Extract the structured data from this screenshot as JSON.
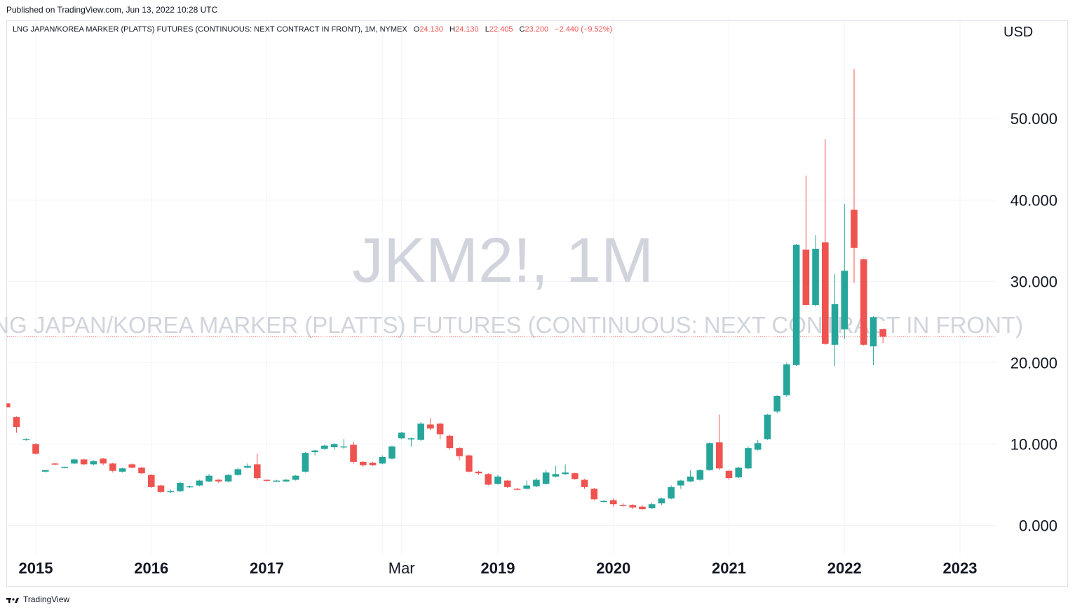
{
  "published": "Published on TradingView.com, Jun 13, 2022 10:28 UTC",
  "legend": {
    "title": "LNG JAPAN/KOREA MARKER (PLATTS) FUTURES (CONTINUOUS: NEXT CONTRACT IN FRONT), 1M, NYMEX",
    "o_label": "O",
    "o": "24.130",
    "h_label": "H",
    "h": "24.130",
    "l_label": "L",
    "l": "22.405",
    "c_label": "C",
    "c": "23.200",
    "change": "−2.440 (−9.52%)"
  },
  "watermark": {
    "symbol": "JKM2!, 1M",
    "description": "LNG JAPAN/KOREA MARKER (PLATTS) FUTURES (CONTINUOUS: NEXT CONTRACT IN FRONT)"
  },
  "currency": "USD",
  "footer": {
    "brand": "TradingView"
  },
  "colors": {
    "up": "#26a69a",
    "down": "#ef5350",
    "grid": "#f0f3fa",
    "watermark": "#d1d4dc",
    "price_line": "#ef5350"
  },
  "chart_data": {
    "type": "candlestick",
    "interval": "1M",
    "y_ticks": [
      "0.000",
      "10.000",
      "20.000",
      "30.000",
      "40.000",
      "50.000"
    ],
    "ylim": [
      -3.5,
      62
    ],
    "x_ticks": [
      {
        "label": "2015",
        "date": "2015-01"
      },
      {
        "label": "2016",
        "date": "2016-01"
      },
      {
        "label": "2017",
        "date": "2017-01"
      },
      {
        "label": "Mar",
        "date": "2018-03"
      },
      {
        "label": "2019",
        "date": "2019-01"
      },
      {
        "label": "2020",
        "date": "2020-01"
      },
      {
        "label": "2021",
        "date": "2021-01"
      },
      {
        "label": "2022",
        "date": "2022-01"
      },
      {
        "label": "2023",
        "date": "2023-01"
      }
    ],
    "grid_dates": [
      "2015-01",
      "2016-01",
      "2017-01",
      "2018-01",
      "2018-03",
      "2019-01",
      "2020-01",
      "2021-01",
      "2022-01",
      "2023-01"
    ],
    "last_price": 23.2,
    "candles": [
      {
        "d": "2014-10",
        "o": 15.0,
        "h": 15.0,
        "l": 14.5,
        "c": 14.5
      },
      {
        "d": "2014-11",
        "o": 13.3,
        "h": 13.4,
        "l": 11.4,
        "c": 12.1
      },
      {
        "d": "2014-12",
        "o": 10.5,
        "h": 10.7,
        "l": 10.4,
        "c": 10.6
      },
      {
        "d": "2015-01",
        "o": 10.0,
        "h": 10.1,
        "l": 8.7,
        "c": 8.8
      },
      {
        "d": "2015-02",
        "o": 6.6,
        "h": 6.8,
        "l": 6.5,
        "c": 6.8
      },
      {
        "d": "2015-03",
        "o": 7.6,
        "h": 7.7,
        "l": 7.4,
        "c": 7.5
      },
      {
        "d": "2015-04",
        "o": 7.1,
        "h": 7.2,
        "l": 7.0,
        "c": 7.2
      },
      {
        "d": "2015-05",
        "o": 7.6,
        "h": 8.2,
        "l": 7.5,
        "c": 8.1
      },
      {
        "d": "2015-06",
        "o": 8.1,
        "h": 8.2,
        "l": 7.4,
        "c": 7.5
      },
      {
        "d": "2015-07",
        "o": 7.5,
        "h": 8.0,
        "l": 7.4,
        "c": 7.9
      },
      {
        "d": "2015-08",
        "o": 8.2,
        "h": 8.3,
        "l": 7.4,
        "c": 7.6
      },
      {
        "d": "2015-09",
        "o": 7.6,
        "h": 7.7,
        "l": 6.5,
        "c": 6.7
      },
      {
        "d": "2015-10",
        "o": 6.6,
        "h": 7.1,
        "l": 6.5,
        "c": 7.0
      },
      {
        "d": "2015-11",
        "o": 7.5,
        "h": 7.6,
        "l": 7.0,
        "c": 7.1
      },
      {
        "d": "2015-12",
        "o": 7.1,
        "h": 7.2,
        "l": 6.3,
        "c": 6.4
      },
      {
        "d": "2016-01",
        "o": 6.2,
        "h": 6.3,
        "l": 4.6,
        "c": 4.7
      },
      {
        "d": "2016-02",
        "o": 4.9,
        "h": 5.0,
        "l": 4.0,
        "c": 4.1
      },
      {
        "d": "2016-03",
        "o": 4.1,
        "h": 4.4,
        "l": 4.0,
        "c": 4.2
      },
      {
        "d": "2016-04",
        "o": 4.2,
        "h": 5.4,
        "l": 4.1,
        "c": 5.2
      },
      {
        "d": "2016-05",
        "o": 4.7,
        "h": 4.9,
        "l": 4.6,
        "c": 4.8
      },
      {
        "d": "2016-06",
        "o": 4.9,
        "h": 5.6,
        "l": 4.8,
        "c": 5.5
      },
      {
        "d": "2016-07",
        "o": 5.4,
        "h": 6.3,
        "l": 5.3,
        "c": 6.1
      },
      {
        "d": "2016-08",
        "o": 5.6,
        "h": 5.7,
        "l": 5.2,
        "c": 5.4
      },
      {
        "d": "2016-09",
        "o": 5.4,
        "h": 6.3,
        "l": 5.3,
        "c": 6.2
      },
      {
        "d": "2016-10",
        "o": 6.2,
        "h": 7.1,
        "l": 6.1,
        "c": 6.9
      },
      {
        "d": "2016-11",
        "o": 7.1,
        "h": 7.6,
        "l": 7.0,
        "c": 7.3
      },
      {
        "d": "2016-12",
        "o": 7.5,
        "h": 8.8,
        "l": 5.6,
        "c": 5.8
      },
      {
        "d": "2017-01",
        "o": 5.6,
        "h": 5.6,
        "l": 5.4,
        "c": 5.5
      },
      {
        "d": "2017-02",
        "o": 5.5,
        "h": 5.6,
        "l": 5.4,
        "c": 5.5
      },
      {
        "d": "2017-03",
        "o": 5.4,
        "h": 5.7,
        "l": 5.3,
        "c": 5.6
      },
      {
        "d": "2017-04",
        "o": 5.6,
        "h": 6.2,
        "l": 5.5,
        "c": 6.1
      },
      {
        "d": "2017-05",
        "o": 6.6,
        "h": 9.0,
        "l": 6.5,
        "c": 8.9
      },
      {
        "d": "2017-06",
        "o": 9.0,
        "h": 9.3,
        "l": 8.6,
        "c": 9.2
      },
      {
        "d": "2017-07",
        "o": 9.4,
        "h": 9.9,
        "l": 9.3,
        "c": 9.8
      },
      {
        "d": "2017-08",
        "o": 9.6,
        "h": 10.1,
        "l": 9.3,
        "c": 10.0
      },
      {
        "d": "2017-09",
        "o": 9.6,
        "h": 10.6,
        "l": 9.4,
        "c": 9.7
      },
      {
        "d": "2017-10",
        "o": 9.9,
        "h": 10.3,
        "l": 7.6,
        "c": 7.8
      },
      {
        "d": "2017-11",
        "o": 7.8,
        "h": 7.9,
        "l": 7.2,
        "c": 7.4
      },
      {
        "d": "2017-12",
        "o": 7.7,
        "h": 7.8,
        "l": 7.3,
        "c": 7.4
      },
      {
        "d": "2018-01",
        "o": 7.6,
        "h": 8.6,
        "l": 7.5,
        "c": 8.4
      },
      {
        "d": "2018-02",
        "o": 8.2,
        "h": 9.8,
        "l": 8.1,
        "c": 9.7
      },
      {
        "d": "2018-03",
        "o": 10.7,
        "h": 11.5,
        "l": 10.6,
        "c": 11.4
      },
      {
        "d": "2018-04",
        "o": 10.6,
        "h": 10.8,
        "l": 9.7,
        "c": 10.7
      },
      {
        "d": "2018-05",
        "o": 10.5,
        "h": 12.7,
        "l": 10.4,
        "c": 12.5
      },
      {
        "d": "2018-06",
        "o": 12.4,
        "h": 13.2,
        "l": 11.7,
        "c": 11.9
      },
      {
        "d": "2018-07",
        "o": 12.5,
        "h": 12.6,
        "l": 10.6,
        "c": 11.2
      },
      {
        "d": "2018-08",
        "o": 11.0,
        "h": 11.2,
        "l": 9.3,
        "c": 9.5
      },
      {
        "d": "2018-09",
        "o": 9.5,
        "h": 9.6,
        "l": 8.0,
        "c": 8.5
      },
      {
        "d": "2018-10",
        "o": 8.6,
        "h": 8.7,
        "l": 6.5,
        "c": 6.6
      },
      {
        "d": "2018-11",
        "o": 6.6,
        "h": 6.7,
        "l": 6.2,
        "c": 6.4
      },
      {
        "d": "2018-12",
        "o": 6.3,
        "h": 6.4,
        "l": 4.9,
        "c": 5.0
      },
      {
        "d": "2019-01",
        "o": 5.1,
        "h": 6.2,
        "l": 5.0,
        "c": 6.0
      },
      {
        "d": "2019-02",
        "o": 5.5,
        "h": 5.6,
        "l": 4.6,
        "c": 4.7
      },
      {
        "d": "2019-03",
        "o": 4.5,
        "h": 4.6,
        "l": 4.3,
        "c": 4.4
      },
      {
        "d": "2019-04",
        "o": 4.5,
        "h": 5.5,
        "l": 4.4,
        "c": 4.9
      },
      {
        "d": "2019-05",
        "o": 4.8,
        "h": 5.8,
        "l": 4.7,
        "c": 5.6
      },
      {
        "d": "2019-06",
        "o": 5.1,
        "h": 6.8,
        "l": 5.0,
        "c": 6.5
      },
      {
        "d": "2019-07",
        "o": 6.0,
        "h": 7.3,
        "l": 5.9,
        "c": 6.3
      },
      {
        "d": "2019-08",
        "o": 6.3,
        "h": 7.5,
        "l": 6.2,
        "c": 6.5
      },
      {
        "d": "2019-09",
        "o": 6.4,
        "h": 6.5,
        "l": 5.6,
        "c": 5.7
      },
      {
        "d": "2019-10",
        "o": 5.6,
        "h": 5.7,
        "l": 4.5,
        "c": 4.7
      },
      {
        "d": "2019-11",
        "o": 4.5,
        "h": 4.6,
        "l": 3.1,
        "c": 3.2
      },
      {
        "d": "2019-12",
        "o": 3.0,
        "h": 3.1,
        "l": 2.8,
        "c": 3.0
      },
      {
        "d": "2020-01",
        "o": 3.1,
        "h": 3.3,
        "l": 2.3,
        "c": 2.6
      },
      {
        "d": "2020-02",
        "o": 2.5,
        "h": 2.7,
        "l": 2.3,
        "c": 2.4
      },
      {
        "d": "2020-03",
        "o": 2.5,
        "h": 2.6,
        "l": 2.0,
        "c": 2.2
      },
      {
        "d": "2020-04",
        "o": 2.3,
        "h": 2.5,
        "l": 1.9,
        "c": 2.0
      },
      {
        "d": "2020-05",
        "o": 2.1,
        "h": 2.8,
        "l": 2.0,
        "c": 2.6
      },
      {
        "d": "2020-06",
        "o": 2.7,
        "h": 3.4,
        "l": 2.5,
        "c": 3.3
      },
      {
        "d": "2020-07",
        "o": 3.3,
        "h": 4.9,
        "l": 3.2,
        "c": 4.7
      },
      {
        "d": "2020-08",
        "o": 4.9,
        "h": 5.6,
        "l": 4.5,
        "c": 5.5
      },
      {
        "d": "2020-09",
        "o": 5.4,
        "h": 6.8,
        "l": 5.3,
        "c": 6.0
      },
      {
        "d": "2020-10",
        "o": 5.6,
        "h": 6.9,
        "l": 5.5,
        "c": 6.8
      },
      {
        "d": "2020-11",
        "o": 6.8,
        "h": 10.2,
        "l": 6.7,
        "c": 10.1
      },
      {
        "d": "2020-12",
        "o": 10.2,
        "h": 13.6,
        "l": 6.8,
        "c": 7.0
      },
      {
        "d": "2021-01",
        "o": 6.7,
        "h": 6.8,
        "l": 5.6,
        "c": 5.8
      },
      {
        "d": "2021-02",
        "o": 5.9,
        "h": 7.2,
        "l": 5.8,
        "c": 7.1
      },
      {
        "d": "2021-03",
        "o": 7.0,
        "h": 9.7,
        "l": 6.9,
        "c": 9.5
      },
      {
        "d": "2021-04",
        "o": 9.3,
        "h": 10.5,
        "l": 9.2,
        "c": 10.1
      },
      {
        "d": "2021-05",
        "o": 10.6,
        "h": 13.7,
        "l": 10.5,
        "c": 13.6
      },
      {
        "d": "2021-06",
        "o": 14.0,
        "h": 16.0,
        "l": 13.8,
        "c": 15.9
      },
      {
        "d": "2021-07",
        "o": 16.0,
        "h": 20.0,
        "l": 15.8,
        "c": 19.8
      },
      {
        "d": "2021-08",
        "o": 19.7,
        "h": 34.6,
        "l": 19.6,
        "c": 34.5
      },
      {
        "d": "2021-09",
        "o": 33.9,
        "h": 43.0,
        "l": 27.0,
        "c": 27.1
      },
      {
        "d": "2021-10",
        "o": 27.1,
        "h": 35.7,
        "l": 26.9,
        "c": 34.0
      },
      {
        "d": "2021-11",
        "o": 34.8,
        "h": 47.5,
        "l": 22.2,
        "c": 22.3
      },
      {
        "d": "2021-12",
        "o": 22.2,
        "h": 30.9,
        "l": 19.6,
        "c": 27.2
      },
      {
        "d": "2022-01",
        "o": 24.1,
        "h": 39.5,
        "l": 22.9,
        "c": 31.3
      },
      {
        "d": "2022-02",
        "o": 38.8,
        "h": 56.1,
        "l": 29.8,
        "c": 34.1
      },
      {
        "d": "2022-03",
        "o": 32.7,
        "h": 32.8,
        "l": 22.1,
        "c": 22.2
      },
      {
        "d": "2022-04",
        "o": 22.0,
        "h": 25.7,
        "l": 19.7,
        "c": 25.6
      },
      {
        "d": "2022-05",
        "o": 24.13,
        "h": 24.13,
        "l": 22.405,
        "c": 23.2
      }
    ]
  }
}
